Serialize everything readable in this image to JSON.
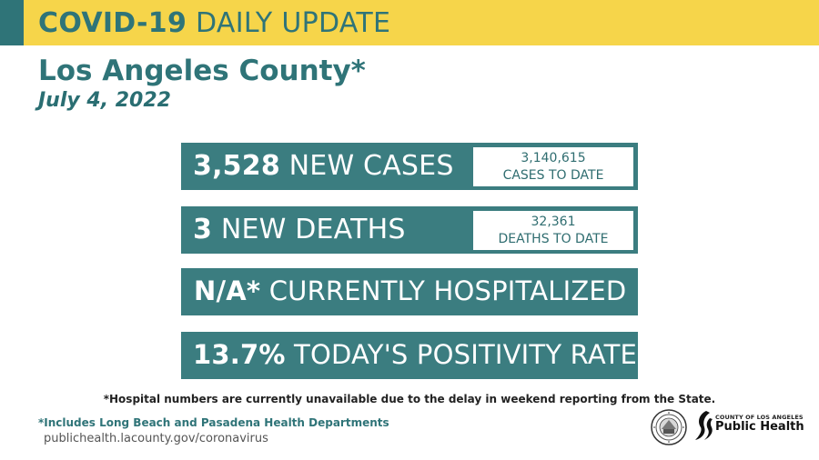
{
  "header": {
    "title_bold": "COVID-19",
    "title_light": "DAILY UPDATE",
    "colors": {
      "banner": "#f6d54a",
      "accent": "#2f7478"
    }
  },
  "location": "Los Angeles County*",
  "date": "July 4, 2022",
  "stats": {
    "cases": {
      "value": "3,528",
      "label": "NEW CASES",
      "to_date_value": "3,140,615",
      "to_date_label": "CASES TO DATE"
    },
    "deaths": {
      "value": "3",
      "label": "NEW DEATHS",
      "to_date_value": "32,361",
      "to_date_label": "DEATHS TO DATE"
    },
    "hospitalized": {
      "value": "N/A*",
      "label": "CURRENTLY HOSPITALIZED"
    },
    "positivity": {
      "value": "13.7%",
      "label": "TODAY'S POSITIVITY RATE"
    },
    "box_color": "#3b7d80"
  },
  "footnote": "*Hospital numbers are currently unavailable due to the delay in weekend reporting from the State.",
  "includes_note": "*Includes Long Beach and Pasadena Health Departments",
  "website": "publichealth.lacounty.gov/coronavirus",
  "logos": {
    "seal": "county-seal-icon",
    "public_health": {
      "county_text": "COUNTY OF LOS ANGELES",
      "name": "Public Health"
    }
  }
}
